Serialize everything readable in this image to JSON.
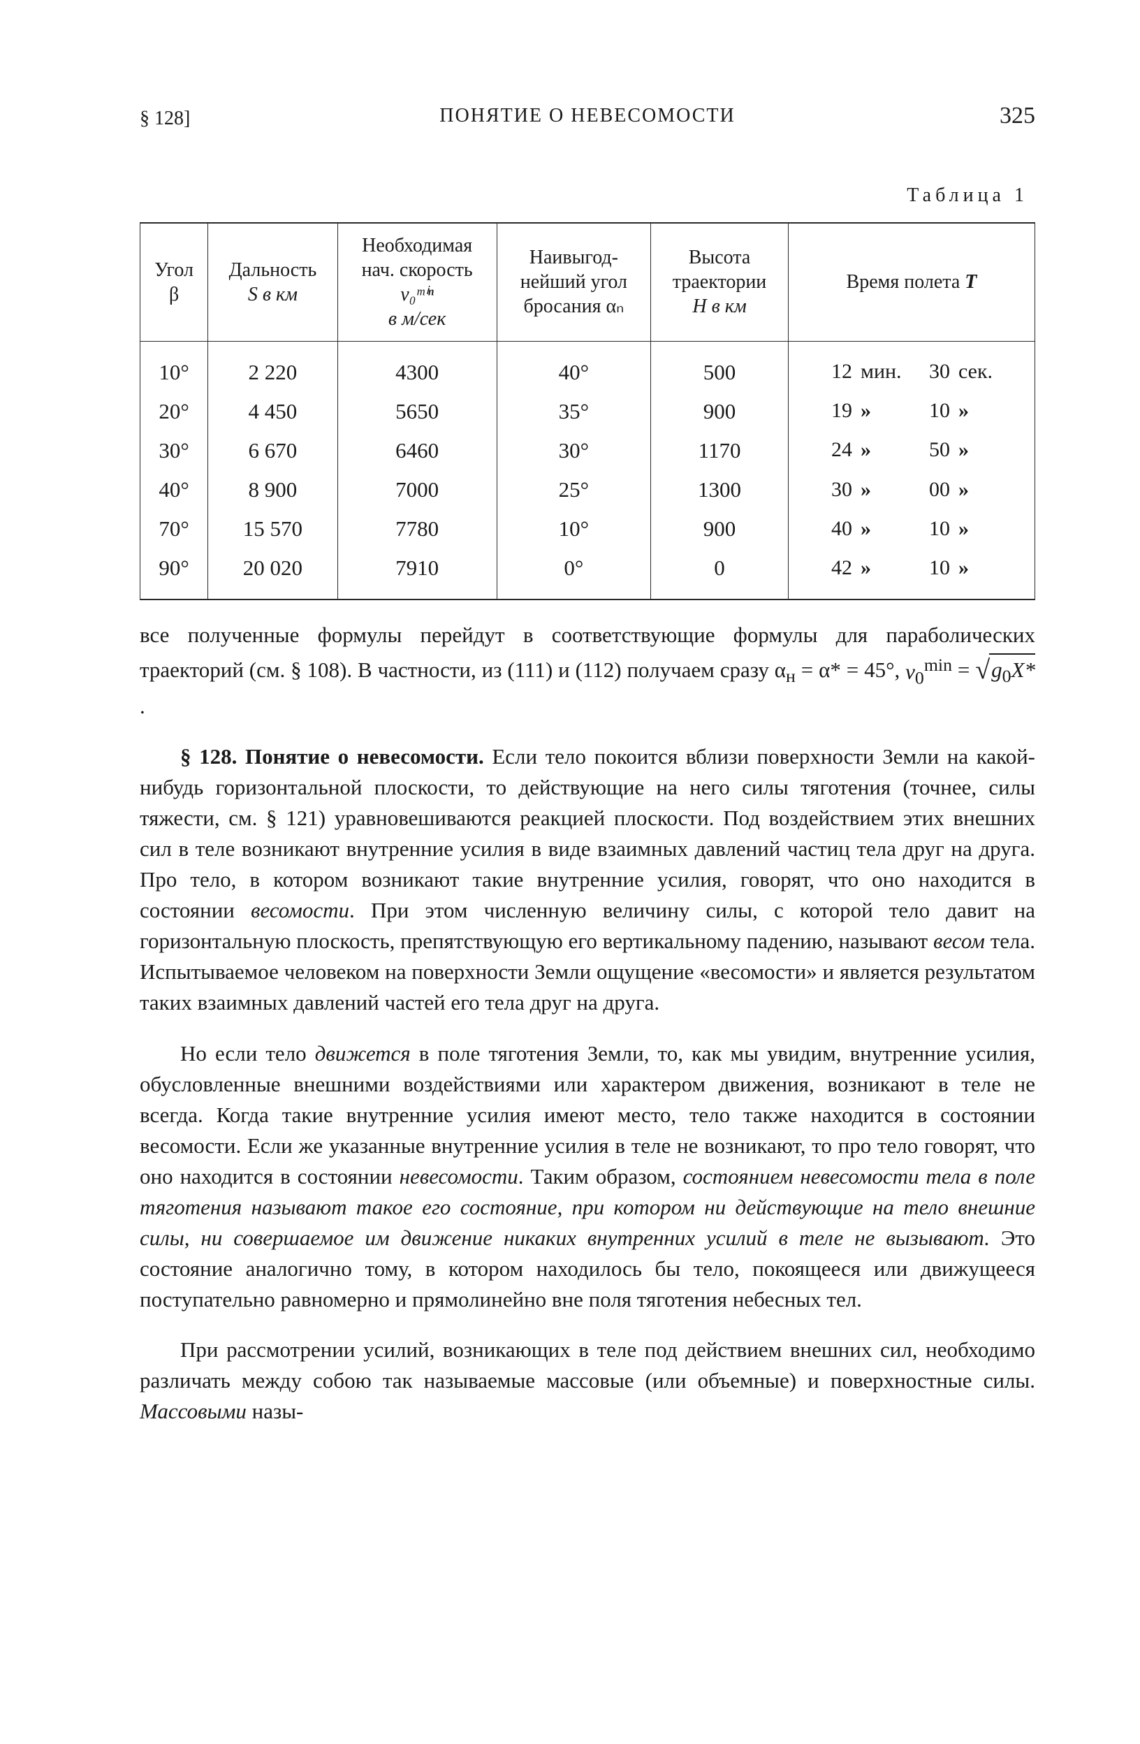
{
  "header": {
    "left": "§ 128]",
    "center": "ПОНЯТИЕ О НЕВЕСОМОСТИ",
    "page_number": "325"
  },
  "table": {
    "caption": "Таблица 1",
    "columns": {
      "c1_l1": "Угол",
      "c1_l2": "β",
      "c2_l1": "Дальность",
      "c2_l2": "S в км",
      "c3_l1": "Необходимая",
      "c3_l2": "нач. скорость",
      "c3_l3": "v₀ᵐⁱⁿ",
      "c3_l4": "в м/сек",
      "c4_l1": "Наивыгод-",
      "c4_l2": "нейший угол",
      "c4_l3": "бросания αₙ",
      "c5_l1": "Высота",
      "c5_l2": "траектории",
      "c5_l3": "H в км",
      "c6_l1": "Время полета T"
    },
    "rows": [
      {
        "angle": "10°",
        "range": "2 220",
        "v0": "4300",
        "opt": "40°",
        "height": "500",
        "t_min": "12",
        "t_min_lbl": "мин.",
        "t_sec": "30",
        "t_sec_lbl": "сек."
      },
      {
        "angle": "20°",
        "range": "4 450",
        "v0": "5650",
        "opt": "35°",
        "height": "900",
        "t_min": "19",
        "t_min_lbl": "»",
        "t_sec": "10",
        "t_sec_lbl": "»"
      },
      {
        "angle": "30°",
        "range": "6 670",
        "v0": "6460",
        "opt": "30°",
        "height": "1170",
        "t_min": "24",
        "t_min_lbl": "»",
        "t_sec": "50",
        "t_sec_lbl": "»"
      },
      {
        "angle": "40°",
        "range": "8 900",
        "v0": "7000",
        "opt": "25°",
        "height": "1300",
        "t_min": "30",
        "t_min_lbl": "»",
        "t_sec": "00",
        "t_sec_lbl": "»"
      },
      {
        "angle": "70°",
        "range": "15 570",
        "v0": "7780",
        "opt": "10°",
        "height": "900",
        "t_min": "40",
        "t_min_lbl": "»",
        "t_sec": "10",
        "t_sec_lbl": "»"
      },
      {
        "angle": "90°",
        "range": "20 020",
        "v0": "7910",
        "opt": "0°",
        "height": "0",
        "t_min": "42",
        "t_min_lbl": "»",
        "t_sec": "10",
        "t_sec_lbl": "»"
      }
    ]
  },
  "para1": {
    "t1": "все полученные формулы перейдут в соответствующие формулы для параболических траекторий (см. § 108). В частности, из (111) и (112) получаем сразу α",
    "sub1": "н",
    "t2": " = α* = 45°, ",
    "v0": "v",
    "v0sub": "0",
    "v0sup": "min",
    "eq": " = ",
    "sqrt_inner_a": "g",
    "sqrt_inner_a_sub": "0",
    "sqrt_inner_b": "X*",
    "end": "."
  },
  "para2": {
    "head": "§ 128. Понятие о невесомости.",
    "body_a": " Если тело покоится вблизи поверхности Земли на какой-нибудь горизонтальной плоскости, то действующие на него силы тяготения (точнее, силы тяжести, см. § 121) уравновешиваются реакцией плоскости. Под воздействием этих внешних сил в теле возникают внутренние усилия в виде взаимных давлений частиц тела друг на друга. Про тело, в котором возникают такие внутренние усилия, говорят, что оно находится в состоянии ",
    "em1": "ве­сомости",
    "body_b": ". При этом численную величину силы, с которой тело да­вит на горизонтальную плоскость, препятствующую его вертикальному падению, называют ",
    "em2": "весом",
    "body_c": " тела. Испытываемое человеком на поверх­ности Земли ощущение «весомости» и является результатом таких взаимных давлений частей его тела друг на друга."
  },
  "para3": {
    "a": "Но если тело ",
    "em1": "движется",
    "b": " в поле тяготения Земли, то, как мы увидим, внутренние усилия, обусловленные внешними воздействиями или характером движения, возникают в теле не всегда. Когда такие внутренние усилия имеют место, тело также находится в состоянии весомости. Если же указанные внутренние усилия в теле не возни­кают, то про тело говорят, что оно находится в состоянии ",
    "em2": "невесо­мости",
    "c": ". Таким образом, ",
    "em3": "состоянием невесомости тела в поле тяготения называют такое его состояние, при котором ни действующие на тело внешние силы, ни совершаемое им дви­жение никаких внутренних усилий в теле не вызывают.",
    "d": " Это состояние аналогично тому, в котором находилось бы тело, покоя­щееся или движущееся поступательно равномерно и прямолинейно вне поля тяготения небесных тел."
  },
  "para4": {
    "a": "При рассмотрении усилий, возникающих в теле под действием внешних сил, необходимо различать между собою так называемые массовые (или объемные) и поверхностные силы. ",
    "em1": "Массовыми",
    "b": " назы-"
  }
}
